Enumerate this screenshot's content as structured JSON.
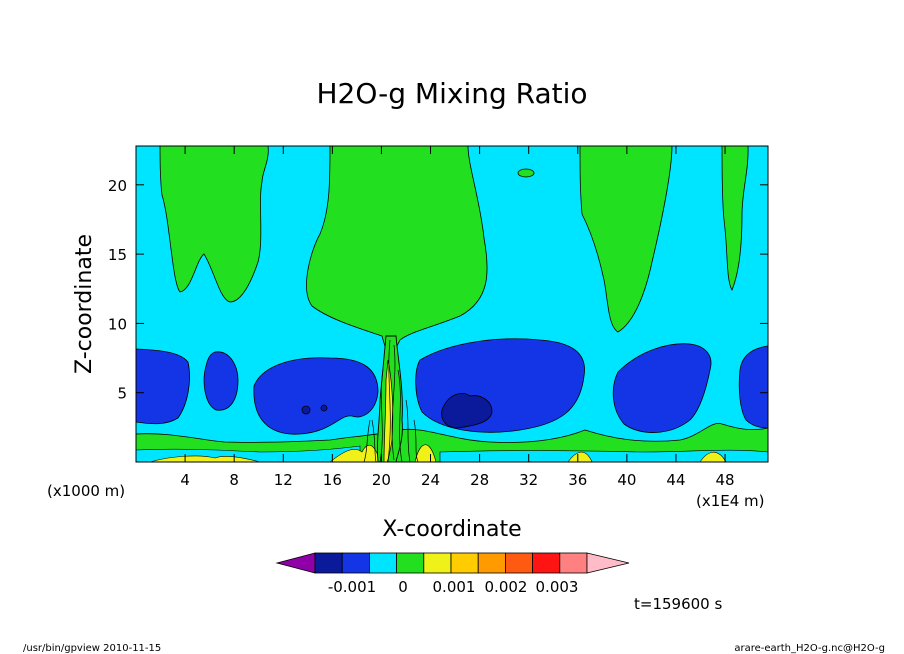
{
  "chart_data": {
    "type": "contour",
    "title": "H2O-g Mixing Ratio",
    "xlabel": "X-coordinate",
    "ylabel": "Z-coordinate",
    "x_unit_left": "(x1000 m)",
    "x_unit_right": "(x1E4 m)",
    "xlim": [
      0,
      51.5
    ],
    "ylim": [
      0,
      22.8
    ],
    "xticks": [
      4,
      8,
      12,
      16,
      20,
      24,
      28,
      32,
      36,
      40,
      44,
      48
    ],
    "yticks": [
      5,
      10,
      15,
      20
    ],
    "colorbar": {
      "colors": [
        "#8f00a8",
        "#0b1a9b",
        "#1435e6",
        "#00e5ff",
        "#22e01f",
        "#f1f11a",
        "#ffcc00",
        "#ff9a00",
        "#ff5a12",
        "#ff1414",
        "#ff8080",
        "#ffbcc8"
      ],
      "labels": [
        "-0.001",
        "0",
        "0.001",
        "0.002",
        "0.003"
      ]
    },
    "time_label": "t=159600 s",
    "footer_left": "/usr/bin/gpview   2010-11-15",
    "footer_right": "arare-earth_H2O-g.nc@H2O-g"
  }
}
